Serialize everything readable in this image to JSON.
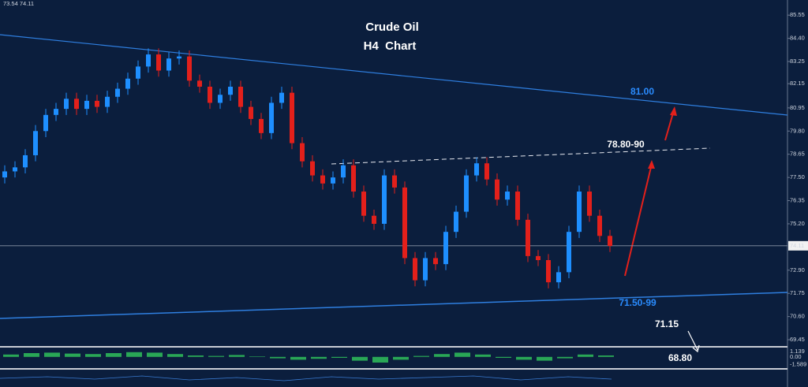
{
  "chart_data": {
    "type": "candlestick",
    "title": "Crude Oil",
    "subtitle": "H4  Chart",
    "quote": "73.54 74.11",
    "ylim": [
      69.1,
      86.3
    ],
    "yticks": [
      85.55,
      {
        "value": 84.4,
        "label": "84.40"
      },
      83.25,
      82.15,
      80.95,
      {
        "value": 79.8,
        "label": "79.80"
      },
      78.65,
      {
        "value": 77.5,
        "label": "77.50"
      },
      76.35,
      {
        "value": 75.2,
        "label": "75.20"
      },
      {
        "value": 72.9,
        "label": "72.90"
      },
      71.75,
      {
        "value": 70.6,
        "label": "70.60"
      },
      69.45
    ],
    "last_price": 74.11,
    "up_color": "#1e8fff",
    "down_color": "#e3201b",
    "candles": [
      [
        77.5,
        78.1,
        77.2,
        77.8
      ],
      [
        77.8,
        78.3,
        77.5,
        78.0
      ],
      [
        78.0,
        78.9,
        77.7,
        78.6
      ],
      [
        78.6,
        80.1,
        78.3,
        79.8
      ],
      [
        79.8,
        80.9,
        79.5,
        80.6
      ],
      [
        80.6,
        81.2,
        80.3,
        80.9
      ],
      [
        80.9,
        81.7,
        80.6,
        81.4
      ],
      [
        81.4,
        81.7,
        80.6,
        80.9
      ],
      [
        80.9,
        81.6,
        80.6,
        81.3
      ],
      [
        81.3,
        81.6,
        80.7,
        81.0
      ],
      [
        81.0,
        81.8,
        80.7,
        81.5
      ],
      [
        81.5,
        82.2,
        81.2,
        81.9
      ],
      [
        81.9,
        82.7,
        81.6,
        82.4
      ],
      [
        82.4,
        83.3,
        82.1,
        83.0
      ],
      [
        83.0,
        83.9,
        82.7,
        83.6
      ],
      [
        83.6,
        83.9,
        82.5,
        82.8
      ],
      [
        82.8,
        83.7,
        82.5,
        83.4
      ],
      [
        83.4,
        83.8,
        83.1,
        83.5
      ],
      [
        83.5,
        83.8,
        82.0,
        82.3
      ],
      [
        82.3,
        82.6,
        81.7,
        82.0
      ],
      [
        82.0,
        82.3,
        80.9,
        81.2
      ],
      [
        81.2,
        81.9,
        80.9,
        81.6
      ],
      [
        81.6,
        82.3,
        81.3,
        82.0
      ],
      [
        82.0,
        82.3,
        80.7,
        81.0
      ],
      [
        81.0,
        81.3,
        80.1,
        80.4
      ],
      [
        80.4,
        80.7,
        79.4,
        79.7
      ],
      [
        79.7,
        81.5,
        79.4,
        81.2
      ],
      [
        81.2,
        82.0,
        80.9,
        81.7
      ],
      [
        81.7,
        82.0,
        78.9,
        79.2
      ],
      [
        79.2,
        79.5,
        78.0,
        78.3
      ],
      [
        78.3,
        78.6,
        77.3,
        77.6
      ],
      [
        77.6,
        77.9,
        76.9,
        77.2
      ],
      [
        77.2,
        77.8,
        76.9,
        77.5
      ],
      [
        77.5,
        78.4,
        77.2,
        78.1
      ],
      [
        78.1,
        78.4,
        76.5,
        76.8
      ],
      [
        76.8,
        77.1,
        75.3,
        75.6
      ],
      [
        75.6,
        75.9,
        74.9,
        75.2
      ],
      [
        75.2,
        77.9,
        74.9,
        77.6
      ],
      [
        77.6,
        77.9,
        76.7,
        77.0
      ],
      [
        77.0,
        77.3,
        73.2,
        73.5
      ],
      [
        73.5,
        73.8,
        72.1,
        72.4
      ],
      [
        72.4,
        73.8,
        72.1,
        73.5
      ],
      [
        73.5,
        73.8,
        72.9,
        73.2
      ],
      [
        73.2,
        75.1,
        72.9,
        74.8
      ],
      [
        74.8,
        76.1,
        74.5,
        75.8
      ],
      [
        75.8,
        77.9,
        75.5,
        77.6
      ],
      [
        77.6,
        78.5,
        77.3,
        78.2
      ],
      [
        78.2,
        78.5,
        77.1,
        77.4
      ],
      [
        77.4,
        77.7,
        76.1,
        76.4
      ],
      [
        76.4,
        77.1,
        76.1,
        76.8
      ],
      [
        76.8,
        77.1,
        75.1,
        75.4
      ],
      [
        75.4,
        75.7,
        73.3,
        73.6
      ],
      [
        73.6,
        73.9,
        73.1,
        73.4
      ],
      [
        73.4,
        73.7,
        72.0,
        72.3
      ],
      [
        72.3,
        73.1,
        72.0,
        72.8
      ],
      [
        72.8,
        75.1,
        72.5,
        74.8
      ],
      [
        74.8,
        77.1,
        74.5,
        76.8
      ],
      [
        76.8,
        77.1,
        75.3,
        75.6
      ],
      [
        75.6,
        75.9,
        74.3,
        74.6
      ],
      [
        74.6,
        74.9,
        73.8,
        74.1
      ]
    ],
    "annotations": [
      "81.00",
      "78.80-90",
      "71.50-99",
      "71.15",
      "68.80"
    ],
    "indicator": {
      "ylim": [
        -2.2,
        1.8
      ],
      "yticks": [
        {
          "value": 1.139,
          "label": "1.139"
        },
        {
          "value": 0,
          "label": "0.00"
        },
        -1.589
      ],
      "color": "#2fbf5a",
      "values": [
        0.5,
        0.8,
        0.9,
        0.7,
        0.6,
        0.8,
        1.0,
        0.9,
        0.6,
        0.3,
        0.2,
        0.4,
        0.1,
        -0.3,
        -0.6,
        -0.4,
        -0.2,
        -0.8,
        -1.2,
        -0.6,
        0.2,
        0.6,
        0.9,
        0.5,
        -0.2,
        -0.6,
        -0.8,
        -0.3,
        0.5,
        0.3
      ]
    }
  }
}
